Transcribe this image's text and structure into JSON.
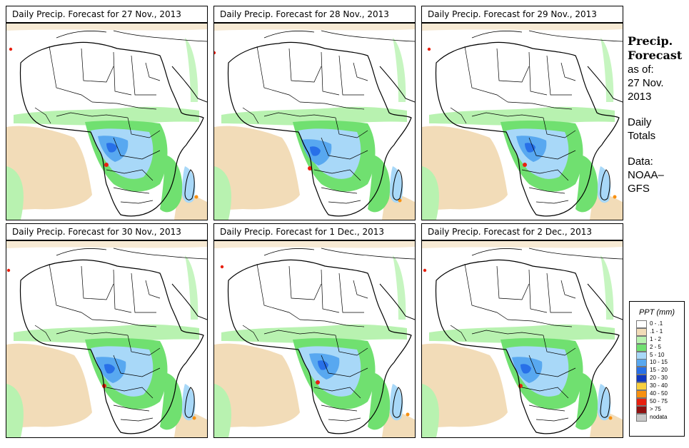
{
  "panels": [
    {
      "title": "Daily Precip. Forecast for  27 Nov., 2013"
    },
    {
      "title": "Daily Precip. Forecast for  28 Nov., 2013"
    },
    {
      "title": "Daily Precip. Forecast for  29 Nov., 2013"
    },
    {
      "title": "Daily Precip. Forecast for  30 Nov., 2013"
    },
    {
      "title": "Daily Precip. Forecast for  1 Dec., 2013"
    },
    {
      "title": "Daily Precip. Forecast for  2 Dec., 2013"
    }
  ],
  "sidebar": {
    "heading_line1": "Precip.",
    "heading_line2": "Forecast",
    "asof_line1": "as of:",
    "asof_line2": "27 Nov.",
    "asof_line3": "2013",
    "period_line1": "Daily",
    "period_line2": "Totals",
    "source_line1": "Data:",
    "source_line2": "NOAA–",
    "source_line3": "GFS"
  },
  "legend": {
    "title": "PPT (mm)",
    "items": [
      {
        "label": "0 - .1",
        "color": "#ffffff"
      },
      {
        "label": ".1 - 1",
        "color": "#f2dcb8"
      },
      {
        "label": "1 - 2",
        "color": "#b8f2b0"
      },
      {
        "label": "2 - 5",
        "color": "#70e070"
      },
      {
        "label": "5 - 10",
        "color": "#a8d8f8"
      },
      {
        "label": "10 - 15",
        "color": "#58a8f0"
      },
      {
        "label": "15 - 20",
        "color": "#2870e8"
      },
      {
        "label": "20 - 30",
        "color": "#1038c0"
      },
      {
        "label": "30 - 40",
        "color": "#f8d040"
      },
      {
        "label": "40 - 50",
        "color": "#f89010"
      },
      {
        "label": "50 - 75",
        "color": "#e82010"
      },
      {
        "label": "> 75",
        "color": "#901010"
      },
      {
        "label": "nodata",
        "color": "#c8c8c8"
      }
    ]
  }
}
